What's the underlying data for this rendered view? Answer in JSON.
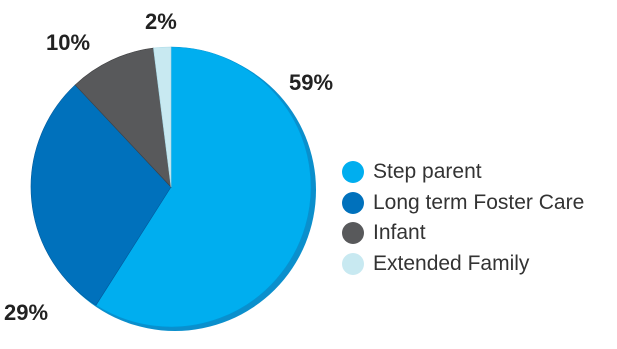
{
  "chart_data": {
    "type": "pie",
    "categories": [
      "Step parent",
      "Long term Foster Care",
      "Infant",
      "Extended Family"
    ],
    "values": [
      59,
      29,
      10,
      2
    ],
    "value_labels": [
      "59%",
      "29%",
      "10%",
      "2%"
    ],
    "colors": [
      "#00aeef",
      "#0071bc",
      "#58595b",
      "#c8e9f1"
    ],
    "title": "",
    "legend_position": "right"
  },
  "legend": {
    "items": [
      {
        "label": "Step parent",
        "color": "#00aeef"
      },
      {
        "label": "Long term Foster Care",
        "color": "#0071bc"
      },
      {
        "label": "Infant",
        "color": "#58595b"
      },
      {
        "label": "Extended Family",
        "color": "#c8e9f1"
      }
    ]
  }
}
